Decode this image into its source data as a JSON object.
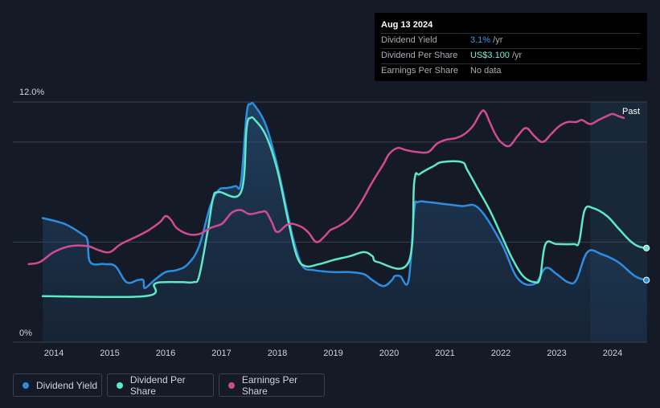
{
  "tooltip": {
    "date": "Aug 13 2024",
    "rows": [
      {
        "label": "Dividend Yield",
        "value": "3.1%",
        "unit": " /yr"
      },
      {
        "label": "Dividend Per Share",
        "value": "US$3.100",
        "unit": " /yr"
      },
      {
        "label": "Earnings Per Share",
        "value": "No data",
        "unit": ""
      }
    ]
  },
  "legend": [
    {
      "label": "Dividend Yield",
      "color": "#2d8de0"
    },
    {
      "label": "Dividend Per Share",
      "color": "#5ee8c8"
    },
    {
      "label": "Earnings Per Share",
      "color": "#d14b93"
    }
  ],
  "past_label": "Past",
  "chart_data": {
    "type": "line",
    "title": "",
    "y_axis": {
      "label_top": "12.0%",
      "label_bottom": "0%",
      "ylim": [
        0,
        12
      ]
    },
    "x_axis": {
      "ticks": [
        "2014",
        "2015",
        "2016",
        "2017",
        "2018",
        "2019",
        "2020",
        "2021",
        "2022",
        "2023",
        "2024"
      ],
      "xlim": [
        2013.55,
        2024.62
      ]
    },
    "forecast_start": 2023.6,
    "series": [
      {
        "name": "Dividend Yield",
        "color": "#2d8de0",
        "fill": true,
        "end_marker": true,
        "points": [
          [
            2013.8,
            6.2
          ],
          [
            2014.2,
            5.9
          ],
          [
            2014.5,
            5.4
          ],
          [
            2014.6,
            5.1
          ],
          [
            2014.65,
            4.0
          ],
          [
            2014.9,
            3.9
          ],
          [
            2015.1,
            3.8
          ],
          [
            2015.3,
            3.0
          ],
          [
            2015.5,
            3.1
          ],
          [
            2015.6,
            3.1
          ],
          [
            2015.63,
            2.7
          ],
          [
            2015.8,
            3.1
          ],
          [
            2016.0,
            3.5
          ],
          [
            2016.2,
            3.6
          ],
          [
            2016.4,
            3.9
          ],
          [
            2016.6,
            4.8
          ],
          [
            2016.8,
            6.8
          ],
          [
            2016.95,
            7.6
          ],
          [
            2017.1,
            7.7
          ],
          [
            2017.25,
            7.8
          ],
          [
            2017.35,
            8.0
          ],
          [
            2017.45,
            11.4
          ],
          [
            2017.52,
            11.9
          ],
          [
            2017.6,
            11.8
          ],
          [
            2017.8,
            10.8
          ],
          [
            2018.0,
            8.8
          ],
          [
            2018.2,
            6.2
          ],
          [
            2018.3,
            5.0
          ],
          [
            2018.45,
            3.8
          ],
          [
            2018.65,
            3.6
          ],
          [
            2019.0,
            3.5
          ],
          [
            2019.3,
            3.5
          ],
          [
            2019.55,
            3.4
          ],
          [
            2019.7,
            3.1
          ],
          [
            2019.9,
            2.8
          ],
          [
            2020.05,
            3.1
          ],
          [
            2020.1,
            3.3
          ],
          [
            2020.2,
            3.3
          ],
          [
            2020.35,
            3.1
          ],
          [
            2020.45,
            6.6
          ],
          [
            2020.52,
            7.0
          ],
          [
            2020.7,
            7.0
          ],
          [
            2021.0,
            6.9
          ],
          [
            2021.3,
            6.8
          ],
          [
            2021.6,
            6.7
          ],
          [
            2022.0,
            5.0
          ],
          [
            2022.3,
            3.2
          ],
          [
            2022.6,
            2.9
          ],
          [
            2022.8,
            3.7
          ],
          [
            2023.0,
            3.4
          ],
          [
            2023.2,
            3.0
          ],
          [
            2023.35,
            3.1
          ],
          [
            2023.55,
            4.5
          ],
          [
            2023.8,
            4.4
          ],
          [
            2024.1,
            4.0
          ],
          [
            2024.4,
            3.3
          ],
          [
            2024.6,
            3.1
          ]
        ]
      },
      {
        "name": "Dividend Per Share",
        "color": "#5ee8c8",
        "fill": false,
        "end_marker": true,
        "points": [
          [
            2013.8,
            2.3
          ],
          [
            2015.63,
            2.3
          ],
          [
            2015.8,
            2.9
          ],
          [
            2016.0,
            3.0
          ],
          [
            2016.3,
            3.0
          ],
          [
            2016.5,
            3.0
          ],
          [
            2016.6,
            3.3
          ],
          [
            2016.75,
            5.5
          ],
          [
            2016.85,
            7.2
          ],
          [
            2016.95,
            7.5
          ],
          [
            2017.35,
            7.5
          ],
          [
            2017.45,
            10.7
          ],
          [
            2017.52,
            11.2
          ],
          [
            2017.6,
            11.1
          ],
          [
            2017.8,
            10.3
          ],
          [
            2018.0,
            8.6
          ],
          [
            2018.2,
            6.0
          ],
          [
            2018.35,
            4.3
          ],
          [
            2018.5,
            3.8
          ],
          [
            2018.75,
            3.9
          ],
          [
            2019.0,
            4.1
          ],
          [
            2019.3,
            4.3
          ],
          [
            2019.55,
            4.5
          ],
          [
            2019.7,
            4.3
          ],
          [
            2019.8,
            4.0
          ],
          [
            2020.35,
            4.0
          ],
          [
            2020.45,
            8.0
          ],
          [
            2020.55,
            8.4
          ],
          [
            2020.8,
            8.8
          ],
          [
            2020.95,
            9.0
          ],
          [
            2021.3,
            9.0
          ],
          [
            2021.4,
            8.6
          ],
          [
            2021.6,
            7.6
          ],
          [
            2021.8,
            6.6
          ],
          [
            2022.0,
            5.4
          ],
          [
            2022.2,
            4.2
          ],
          [
            2022.4,
            3.3
          ],
          [
            2022.6,
            3.0
          ],
          [
            2022.7,
            3.2
          ],
          [
            2022.8,
            4.9
          ],
          [
            2023.0,
            4.9
          ],
          [
            2023.3,
            4.9
          ],
          [
            2023.4,
            5.0
          ],
          [
            2023.5,
            6.6
          ],
          [
            2023.65,
            6.7
          ],
          [
            2023.9,
            6.3
          ],
          [
            2024.1,
            5.7
          ],
          [
            2024.3,
            5.1
          ],
          [
            2024.45,
            4.8
          ],
          [
            2024.6,
            4.7
          ]
        ]
      },
      {
        "name": "Earnings Per Share",
        "color": "#d14b93",
        "fill": false,
        "end_marker": false,
        "points": [
          [
            2013.55,
            3.9
          ],
          [
            2013.75,
            4.0
          ],
          [
            2014.0,
            4.5
          ],
          [
            2014.3,
            4.8
          ],
          [
            2014.6,
            4.8
          ],
          [
            2014.8,
            4.6
          ],
          [
            2015.0,
            4.5
          ],
          [
            2015.2,
            4.9
          ],
          [
            2015.5,
            5.3
          ],
          [
            2015.7,
            5.6
          ],
          [
            2015.9,
            6.0
          ],
          [
            2016.0,
            6.3
          ],
          [
            2016.1,
            6.1
          ],
          [
            2016.2,
            5.7
          ],
          [
            2016.4,
            5.4
          ],
          [
            2016.6,
            5.4
          ],
          [
            2016.8,
            5.7
          ],
          [
            2017.0,
            5.9
          ],
          [
            2017.1,
            6.2
          ],
          [
            2017.2,
            6.5
          ],
          [
            2017.35,
            6.6
          ],
          [
            2017.5,
            6.4
          ],
          [
            2017.7,
            6.5
          ],
          [
            2017.8,
            6.5
          ],
          [
            2017.9,
            6.0
          ],
          [
            2018.0,
            5.5
          ],
          [
            2018.2,
            5.9
          ],
          [
            2018.4,
            5.8
          ],
          [
            2018.55,
            5.5
          ],
          [
            2018.7,
            5.0
          ],
          [
            2018.85,
            5.3
          ],
          [
            2018.95,
            5.6
          ],
          [
            2019.1,
            5.8
          ],
          [
            2019.3,
            6.2
          ],
          [
            2019.5,
            7.0
          ],
          [
            2019.7,
            8.0
          ],
          [
            2019.9,
            8.9
          ],
          [
            2020.0,
            9.4
          ],
          [
            2020.15,
            9.7
          ],
          [
            2020.3,
            9.6
          ],
          [
            2020.5,
            9.5
          ],
          [
            2020.7,
            9.5
          ],
          [
            2020.85,
            9.9
          ],
          [
            2021.0,
            10.1
          ],
          [
            2021.2,
            10.2
          ],
          [
            2021.35,
            10.4
          ],
          [
            2021.5,
            10.8
          ],
          [
            2021.65,
            11.5
          ],
          [
            2021.72,
            11.5
          ],
          [
            2021.8,
            11.0
          ],
          [
            2021.9,
            10.4
          ],
          [
            2022.0,
            10.0
          ],
          [
            2022.15,
            9.8
          ],
          [
            2022.3,
            10.3
          ],
          [
            2022.45,
            10.7
          ],
          [
            2022.6,
            10.3
          ],
          [
            2022.75,
            10.0
          ],
          [
            2022.9,
            10.4
          ],
          [
            2023.05,
            10.8
          ],
          [
            2023.2,
            11.0
          ],
          [
            2023.35,
            11.0
          ],
          [
            2023.45,
            11.1
          ],
          [
            2023.6,
            10.9
          ],
          [
            2023.75,
            11.1
          ],
          [
            2023.9,
            11.3
          ],
          [
            2024.0,
            11.4
          ],
          [
            2024.1,
            11.3
          ],
          [
            2024.2,
            11.2
          ]
        ]
      }
    ]
  }
}
